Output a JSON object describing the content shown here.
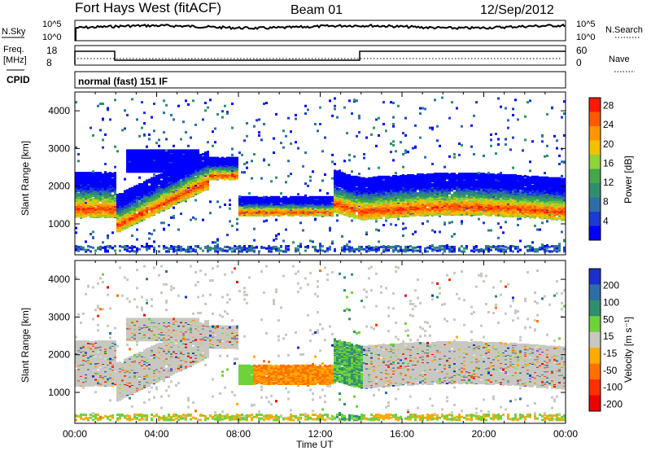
{
  "header": {
    "site": "Fort Hays West (fitACF)",
    "beam": "Beam 01",
    "date": "12/Sep/2012"
  },
  "top_panels": {
    "nsky_label": "N.Sky",
    "nsky_ticks": [
      "10^5",
      "10^0"
    ],
    "nsearch_label": "N.Search",
    "freq_label_1": "Freq.",
    "freq_label_2": "[MHz]",
    "freq_ticks": [
      "18",
      "8"
    ],
    "nave_ticks": [
      "60",
      "0"
    ],
    "nave_label": "Nave",
    "cpid_label": "CPID",
    "cpid_text": "normal (fast) 151 IF"
  },
  "chart_data": [
    {
      "type": "heatmap",
      "panel": "power",
      "ylabel": "Slant Range [km]",
      "ylim": [
        180,
        4500
      ],
      "yticks": [
        "1000",
        "2000",
        "3000",
        "4000"
      ],
      "colorbar_label": "Power [dB]",
      "colorbar_ticks": [
        "4",
        "8",
        "12",
        "16",
        "20",
        "24",
        "28"
      ],
      "colors": [
        "#0000ff",
        "#1c3bd0",
        "#2d6ea8",
        "#2e8f6e",
        "#43a84a",
        "#8fd33a",
        "#f2c200",
        "#ff9600",
        "#ff5a00",
        "#ff1800"
      ]
    },
    {
      "type": "heatmap",
      "panel": "velocity",
      "ylabel": "Slant Range [km]",
      "ylim": [
        180,
        4500
      ],
      "yticks": [
        "1000",
        "2000",
        "3000",
        "4000"
      ],
      "colorbar_label": "Velocity [m s⁻¹]",
      "colorbar_ticks": [
        "200",
        "100",
        "50",
        "15",
        "-15",
        "-50",
        "-100",
        "-200"
      ],
      "colors": [
        "#1a2fd0",
        "#2d6ea8",
        "#2e8f6e",
        "#6ed23a",
        "#c8c8c0",
        "#ffab00",
        "#ff7000",
        "#ff3000",
        "#ee0000"
      ]
    }
  ],
  "x_axis": {
    "ticks": [
      "00:00",
      "04:00",
      "08:00",
      "12:00",
      "16:00",
      "20:00",
      "00:00"
    ],
    "label": "Time UT"
  }
}
